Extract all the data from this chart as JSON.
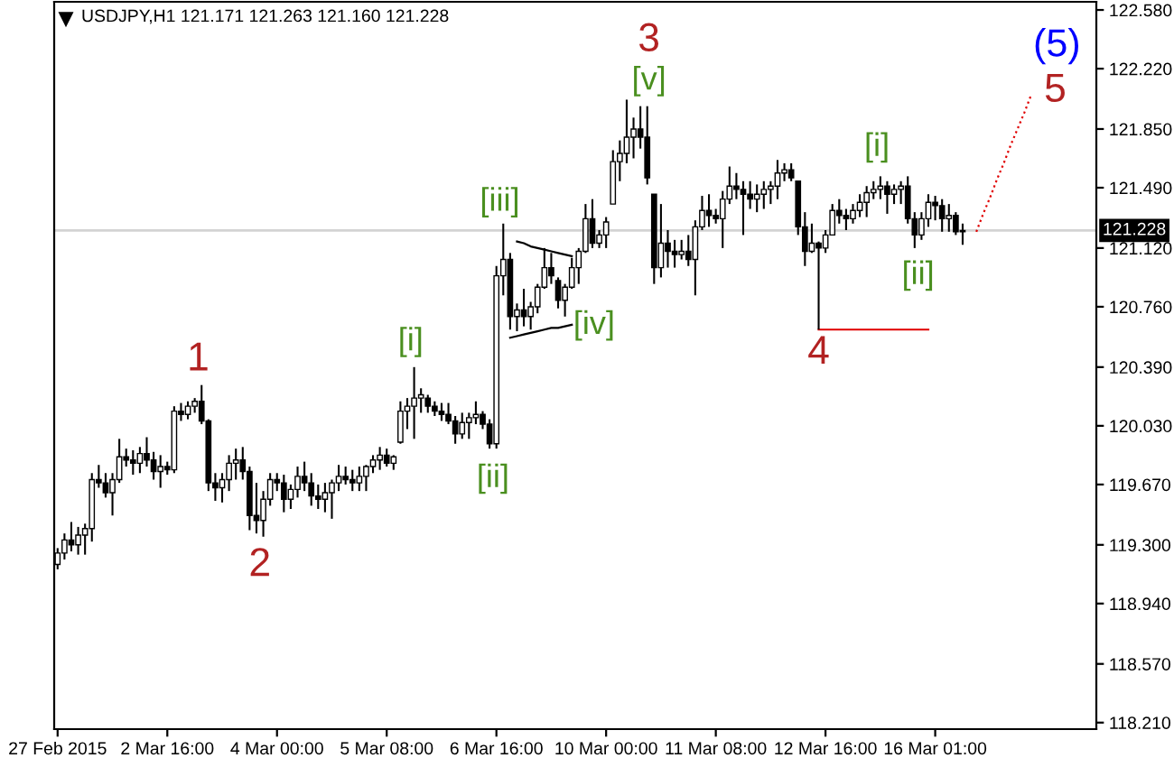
{
  "chart_data": {
    "type": "candlestick",
    "title": "USDJPY,H1 121.171 121.263 121.160 121.228",
    "color": "#000000",
    "categories": [
      "27 Feb 2015",
      null,
      null,
      null,
      null,
      null,
      null,
      null,
      null,
      null,
      null,
      null,
      null,
      null,
      null,
      null,
      "2 Mar 16:00",
      null,
      null,
      null,
      null,
      null,
      null,
      null,
      null,
      null,
      null,
      null,
      null,
      null,
      null,
      null,
      "4 Mar 00:00",
      null,
      null,
      null,
      null,
      null,
      null,
      null,
      null,
      null,
      null,
      null,
      null,
      null,
      null,
      null,
      "5 Mar 08:00",
      null,
      null,
      null,
      null,
      null,
      null,
      null,
      null,
      null,
      null,
      null,
      null,
      null,
      null,
      null,
      "6 Mar 16:00",
      null,
      null,
      null,
      null,
      null,
      null,
      null,
      null,
      null,
      null,
      null,
      null,
      null,
      null,
      null,
      "10 Mar 00:00",
      null,
      null,
      null,
      null,
      null,
      null,
      null,
      null,
      null,
      null,
      null,
      null,
      null,
      null,
      null,
      "11 Mar 08:00",
      null,
      null,
      null,
      null,
      null,
      null,
      null,
      null,
      null,
      null,
      null,
      null,
      null,
      null,
      null,
      "12 Mar 16:00",
      null,
      null,
      null,
      null,
      null,
      null,
      null,
      null,
      null,
      null,
      null,
      null,
      null,
      null,
      null,
      "16 Mar 01:00",
      null,
      null,
      null,
      null,
      null,
      null,
      null,
      null,
      null,
      null,
      null,
      null,
      null,
      null,
      null,
      null,
      null,
      null,
      null,
      null,
      null,
      null,
      null
    ],
    "ohlc": [
      [
        119.18,
        119.28,
        119.15,
        119.25
      ],
      [
        119.25,
        119.37,
        119.21,
        119.33
      ],
      [
        119.33,
        119.44,
        119.26,
        119.3
      ],
      [
        119.3,
        119.41,
        119.24,
        119.36
      ],
      [
        119.36,
        119.43,
        119.24,
        119.4
      ],
      [
        119.4,
        119.74,
        119.32,
        119.7
      ],
      [
        119.7,
        119.79,
        119.65,
        119.68
      ],
      [
        119.68,
        119.74,
        119.59,
        119.62
      ],
      [
        119.62,
        119.74,
        119.48,
        119.7
      ],
      [
        119.7,
        119.95,
        119.68,
        119.84
      ],
      [
        119.84,
        119.89,
        119.78,
        119.82
      ],
      [
        119.82,
        119.88,
        119.73,
        119.8
      ],
      [
        119.8,
        119.9,
        119.74,
        119.86
      ],
      [
        119.86,
        119.96,
        119.78,
        119.82
      ],
      [
        119.82,
        119.87,
        119.7,
        119.75
      ],
      [
        119.75,
        119.85,
        119.65,
        119.78
      ],
      [
        119.78,
        119.81,
        119.73,
        119.76
      ],
      [
        119.76,
        120.15,
        119.74,
        120.12
      ],
      [
        120.12,
        120.17,
        120.06,
        120.1
      ],
      [
        120.1,
        120.18,
        120.07,
        120.15
      ],
      [
        120.15,
        120.2,
        120.11,
        120.18
      ],
      [
        120.18,
        120.28,
        120.04,
        120.06
      ],
      [
        120.06,
        120.07,
        119.63,
        119.68
      ],
      [
        119.68,
        119.74,
        119.57,
        119.65
      ],
      [
        119.65,
        119.74,
        119.56,
        119.7
      ],
      [
        119.7,
        119.85,
        119.63,
        119.8
      ],
      [
        119.8,
        119.89,
        119.7,
        119.82
      ],
      [
        119.82,
        119.9,
        119.7,
        119.75
      ],
      [
        119.75,
        119.78,
        119.39,
        119.48
      ],
      [
        119.48,
        119.68,
        119.37,
        119.45
      ],
      [
        119.45,
        119.63,
        119.35,
        119.58
      ],
      [
        119.58,
        119.74,
        119.54,
        119.7
      ],
      [
        119.7,
        119.74,
        119.63,
        119.68
      ],
      [
        119.68,
        119.73,
        119.5,
        119.58
      ],
      [
        119.58,
        119.67,
        119.52,
        119.64
      ],
      [
        119.64,
        119.78,
        119.59,
        119.72
      ],
      [
        119.72,
        119.81,
        119.63,
        119.68
      ],
      [
        119.68,
        119.74,
        119.54,
        119.6
      ],
      [
        119.6,
        119.67,
        119.52,
        119.58
      ],
      [
        119.58,
        119.68,
        119.5,
        119.62
      ],
      [
        119.62,
        119.7,
        119.46,
        119.68
      ],
      [
        119.68,
        119.79,
        119.63,
        119.72
      ],
      [
        119.72,
        119.78,
        119.67,
        119.7
      ],
      [
        119.7,
        119.76,
        119.63,
        119.68
      ],
      [
        119.68,
        119.78,
        119.63,
        119.72
      ],
      [
        119.72,
        119.79,
        119.63,
        119.78
      ],
      [
        119.78,
        119.85,
        119.74,
        119.82
      ],
      [
        119.82,
        119.9,
        119.76,
        119.85
      ],
      [
        119.85,
        119.89,
        119.78,
        119.8
      ],
      [
        119.8,
        119.85,
        119.76,
        119.84
      ],
      [
        119.93,
        120.18,
        119.92,
        120.12
      ],
      [
        120.12,
        120.2,
        120.01,
        120.15
      ],
      [
        120.15,
        120.39,
        119.95,
        120.2
      ],
      [
        120.2,
        120.26,
        120.11,
        120.22
      ],
      [
        120.2,
        120.22,
        120.11,
        120.15
      ],
      [
        120.15,
        120.18,
        120.09,
        120.12
      ],
      [
        120.12,
        120.17,
        120.06,
        120.1
      ],
      [
        120.1,
        120.17,
        120.04,
        120.06
      ],
      [
        120.06,
        120.09,
        119.92,
        119.98
      ],
      [
        119.98,
        120.11,
        119.95,
        120.05
      ],
      [
        120.05,
        120.11,
        119.95,
        120.08
      ],
      [
        120.08,
        120.18,
        120.04,
        120.1
      ],
      [
        120.1,
        120.12,
        120.01,
        120.04
      ],
      [
        120.04,
        120.07,
        119.89,
        119.92
      ],
      [
        119.92,
        121.01,
        119.89,
        120.95
      ],
      [
        120.95,
        121.27,
        120.83,
        121.05
      ],
      [
        121.05,
        121.09,
        120.62,
        120.7
      ],
      [
        120.7,
        120.78,
        120.61,
        120.74
      ],
      [
        120.74,
        120.87,
        120.64,
        120.7
      ],
      [
        120.7,
        120.79,
        120.62,
        120.76
      ],
      [
        120.76,
        120.9,
        120.72,
        120.88
      ],
      [
        120.88,
        121.12,
        120.87,
        121.0
      ],
      [
        121.0,
        121.09,
        120.9,
        120.95
      ],
      [
        120.92,
        120.94,
        120.75,
        120.8
      ],
      [
        120.8,
        120.9,
        120.7,
        120.88
      ],
      [
        120.88,
        121.06,
        120.87,
        121.0
      ],
      [
        121.0,
        121.12,
        120.9,
        121.1
      ],
      [
        121.1,
        121.39,
        121.09,
        121.3
      ],
      [
        121.3,
        121.42,
        121.12,
        121.15
      ],
      [
        121.15,
        121.23,
        121.12,
        121.2
      ],
      [
        121.2,
        121.31,
        121.12,
        121.28
      ],
      [
        121.39,
        121.72,
        121.39,
        121.65
      ],
      [
        121.65,
        121.78,
        121.53,
        121.7
      ],
      [
        121.7,
        122.03,
        121.64,
        121.8
      ],
      [
        121.8,
        121.92,
        121.67,
        121.85
      ],
      [
        121.85,
        121.99,
        121.73,
        121.8
      ],
      [
        121.8,
        121.99,
        121.51,
        121.55
      ],
      [
        121.45,
        121.45,
        120.9,
        121.0
      ],
      [
        121.0,
        121.39,
        120.94,
        121.15
      ],
      [
        121.15,
        121.23,
        121.0,
        121.1
      ],
      [
        121.1,
        121.17,
        121.0,
        121.08
      ],
      [
        121.08,
        121.17,
        121.05,
        121.1
      ],
      [
        121.1,
        121.2,
        121.01,
        121.05
      ],
      [
        121.05,
        121.29,
        120.83,
        121.25
      ],
      [
        121.25,
        121.44,
        121.23,
        121.35
      ],
      [
        121.35,
        121.45,
        121.25,
        121.32
      ],
      [
        121.32,
        121.36,
        121.27,
        121.3
      ],
      [
        121.3,
        121.47,
        121.12,
        121.42
      ],
      [
        121.42,
        121.62,
        121.39,
        121.5
      ],
      [
        121.5,
        121.58,
        121.42,
        121.48
      ],
      [
        121.48,
        121.53,
        121.2,
        121.45
      ],
      [
        121.45,
        121.53,
        121.36,
        121.42
      ],
      [
        121.42,
        121.51,
        121.34,
        121.45
      ],
      [
        121.45,
        121.53,
        121.36,
        121.48
      ],
      [
        121.48,
        121.53,
        121.39,
        121.5
      ],
      [
        121.5,
        121.66,
        121.42,
        121.58
      ],
      [
        121.58,
        121.64,
        121.53,
        121.6
      ],
      [
        121.6,
        121.64,
        121.53,
        121.55
      ],
      [
        121.53,
        121.53,
        121.2,
        121.25
      ],
      [
        121.25,
        121.34,
        121.01,
        121.1
      ],
      [
        121.1,
        121.27,
        121.09,
        121.15
      ],
      [
        121.15,
        121.16,
        120.62,
        121.12
      ],
      [
        121.12,
        121.23,
        121.09,
        121.2
      ],
      [
        121.2,
        121.39,
        121.2,
        121.35
      ],
      [
        121.35,
        121.42,
        121.27,
        121.32
      ],
      [
        121.32,
        121.36,
        121.23,
        121.3
      ],
      [
        121.3,
        121.39,
        121.27,
        121.35
      ],
      [
        121.35,
        121.45,
        121.31,
        121.4
      ],
      [
        121.4,
        121.5,
        121.31,
        121.46
      ],
      [
        121.46,
        121.53,
        121.42,
        121.48
      ],
      [
        121.48,
        121.56,
        121.42,
        121.5
      ],
      [
        121.5,
        121.53,
        121.33,
        121.45
      ],
      [
        121.45,
        121.51,
        121.39,
        121.48
      ],
      [
        121.48,
        121.53,
        121.39,
        121.5
      ],
      [
        121.5,
        121.56,
        121.27,
        121.3
      ],
      [
        121.3,
        121.34,
        121.12,
        121.2
      ],
      [
        121.2,
        121.34,
        121.17,
        121.3
      ],
      [
        121.3,
        121.45,
        121.25,
        121.4
      ],
      [
        121.4,
        121.44,
        121.29,
        121.38
      ],
      [
        121.38,
        121.42,
        121.22,
        121.3
      ],
      [
        121.3,
        121.39,
        121.22,
        121.32
      ],
      [
        121.32,
        121.34,
        121.2,
        121.22
      ],
      [
        121.22,
        121.27,
        121.14,
        121.228
      ],
      null,
      null,
      null,
      null,
      null,
      null,
      null,
      null,
      null,
      null,
      null,
      null,
      null,
      null,
      null,
      null,
      null,
      null,
      null
    ],
    "series": [
      {
        "type": "line",
        "color": "#000000",
        "values": [
          null,
          null,
          null,
          null,
          null,
          null,
          null,
          null,
          null,
          null,
          null,
          null,
          null,
          null,
          null,
          null,
          null,
          null,
          null,
          null,
          null,
          null,
          null,
          null,
          null,
          null,
          null,
          null,
          null,
          null,
          null,
          null,
          null,
          null,
          null,
          null,
          null,
          null,
          null,
          null,
          null,
          null,
          null,
          null,
          null,
          null,
          null,
          null,
          null,
          null,
          null,
          null,
          null,
          null,
          null,
          null,
          null,
          null,
          null,
          null,
          null,
          null,
          null,
          null,
          null,
          null,
          null,
          121.16,
          121.15,
          121.13,
          121.12,
          121.11,
          121.1,
          121.09,
          121.08,
          121.07,
          null,
          null,
          null,
          null,
          null,
          null,
          null,
          null,
          null,
          null,
          null,
          null,
          null,
          null,
          null,
          null,
          null,
          null,
          null,
          null,
          null,
          null,
          null,
          null,
          null,
          null,
          null,
          null,
          null,
          null,
          null,
          null,
          null,
          null,
          null,
          null,
          null,
          null,
          null,
          null,
          null,
          null,
          null,
          null,
          null,
          null,
          null,
          null,
          null,
          null,
          null,
          null,
          null,
          null,
          null,
          null,
          null,
          null,
          null,
          null,
          null,
          null,
          null,
          null,
          null,
          null,
          null,
          null,
          null,
          null,
          null,
          null,
          null,
          null,
          null,
          null
        ]
      },
      {
        "type": "line",
        "color": "#000000",
        "values": [
          null,
          null,
          null,
          null,
          null,
          null,
          null,
          null,
          null,
          null,
          null,
          null,
          null,
          null,
          null,
          null,
          null,
          null,
          null,
          null,
          null,
          null,
          null,
          null,
          null,
          null,
          null,
          null,
          null,
          null,
          null,
          null,
          null,
          null,
          null,
          null,
          null,
          null,
          null,
          null,
          null,
          null,
          null,
          null,
          null,
          null,
          null,
          null,
          null,
          null,
          null,
          null,
          null,
          null,
          null,
          null,
          null,
          null,
          null,
          null,
          null,
          null,
          null,
          null,
          null,
          null,
          120.57,
          120.58,
          120.59,
          120.6,
          120.61,
          120.62,
          120.63,
          120.63,
          120.64,
          120.65,
          null,
          null,
          null,
          null,
          null,
          null,
          null,
          null,
          null,
          null,
          null,
          null,
          null,
          null,
          null,
          null,
          null,
          null,
          null,
          null,
          null,
          null,
          null,
          null,
          null,
          null,
          null,
          null,
          null,
          null,
          null,
          null,
          null,
          null,
          null,
          null,
          null,
          null,
          null,
          null,
          null,
          null,
          null,
          null,
          null,
          null,
          null,
          null,
          null,
          null,
          null,
          null,
          null,
          null,
          null,
          null,
          null,
          null,
          null,
          null,
          null,
          null,
          null,
          null,
          null,
          null,
          null,
          null,
          null,
          null,
          null,
          null,
          null,
          null,
          null,
          null
        ]
      },
      {
        "type": "line",
        "color": "#e00000",
        "values": [
          null,
          null,
          null,
          null,
          null,
          null,
          null,
          null,
          null,
          null,
          null,
          null,
          null,
          null,
          null,
          null,
          null,
          null,
          null,
          null,
          null,
          null,
          null,
          null,
          null,
          null,
          null,
          null,
          null,
          null,
          null,
          null,
          null,
          null,
          null,
          null,
          null,
          null,
          null,
          null,
          null,
          null,
          null,
          null,
          null,
          null,
          null,
          null,
          null,
          null,
          null,
          null,
          null,
          null,
          null,
          null,
          null,
          null,
          null,
          null,
          null,
          null,
          null,
          null,
          null,
          null,
          null,
          null,
          null,
          null,
          null,
          null,
          null,
          null,
          null,
          null,
          null,
          null,
          null,
          null,
          null,
          null,
          null,
          null,
          null,
          null,
          null,
          null,
          null,
          null,
          null,
          null,
          null,
          null,
          null,
          null,
          null,
          null,
          null,
          null,
          null,
          null,
          null,
          null,
          null,
          null,
          null,
          null,
          null,
          null,
          null,
          120.62,
          120.62,
          120.62,
          120.62,
          120.62,
          120.62,
          120.62,
          120.62,
          120.62,
          120.62,
          120.62,
          120.62,
          120.62,
          120.62,
          120.62,
          120.62,
          120.62,
          null,
          null,
          null,
          null,
          null,
          null,
          null,
          null,
          null,
          null,
          null,
          null,
          null,
          null,
          null,
          null,
          null,
          null,
          null,
          null,
          null,
          null,
          null,
          null
        ]
      },
      {
        "type": "line",
        "color": "#e00000",
        "line_style": "dotted",
        "values": [
          null,
          null,
          null,
          null,
          null,
          null,
          null,
          null,
          null,
          null,
          null,
          null,
          null,
          null,
          null,
          null,
          null,
          null,
          null,
          null,
          null,
          null,
          null,
          null,
          null,
          null,
          null,
          null,
          null,
          null,
          null,
          null,
          null,
          null,
          null,
          null,
          null,
          null,
          null,
          null,
          null,
          null,
          null,
          null,
          null,
          null,
          null,
          null,
          null,
          null,
          null,
          null,
          null,
          null,
          null,
          null,
          null,
          null,
          null,
          null,
          null,
          null,
          null,
          null,
          null,
          null,
          null,
          null,
          null,
          null,
          null,
          null,
          null,
          null,
          null,
          null,
          null,
          null,
          null,
          null,
          null,
          null,
          null,
          null,
          null,
          null,
          null,
          null,
          null,
          null,
          null,
          null,
          null,
          null,
          null,
          null,
          null,
          null,
          null,
          null,
          null,
          null,
          null,
          null,
          null,
          null,
          null,
          null,
          null,
          null,
          null,
          null,
          null,
          null,
          null,
          null,
          null,
          null,
          null,
          null,
          null,
          null,
          null,
          null,
          null,
          null,
          null,
          null,
          null,
          null,
          null,
          null,
          null,
          null,
          121.22,
          121.33,
          121.43,
          121.54,
          121.64,
          121.75,
          121.85,
          121.95,
          122.06,
          null,
          null,
          null,
          null,
          null,
          null,
          null,
          null,
          null
        ]
      }
    ],
    "ylim": [
      118.17,
      122.63
    ],
    "yticks": [
      {
        "value": 122.58,
        "label": "122.580"
      },
      {
        "value": 122.22,
        "label": "122.220"
      },
      {
        "value": 121.85,
        "label": "121.850"
      },
      {
        "value": 121.49,
        "label": "121.490"
      },
      {
        "value": 121.12,
        "label": "121.120"
      },
      {
        "value": 120.76,
        "label": "120.760"
      },
      {
        "value": 120.39,
        "label": "120.390"
      },
      {
        "value": 120.03,
        "label": "120.030"
      },
      {
        "value": 119.67,
        "label": "119.670"
      },
      {
        "value": 119.3,
        "label": "119.300"
      },
      {
        "value": 118.94,
        "label": "118.940"
      },
      {
        "value": 118.57,
        "label": "118.570"
      },
      {
        "value": 118.21,
        "label": "118.210"
      }
    ],
    "ref_lines": [
      {
        "axis": "y",
        "value": 121.228,
        "label": "121.228",
        "color": "#d3d3d3"
      }
    ],
    "annotations": [
      {
        "text": "1",
        "y": 120.28
      },
      {
        "text": "2",
        "y": 119.35
      },
      {
        "text": "3",
        "y": 122.03
      },
      {
        "text": "4",
        "y": 120.62
      },
      "5",
      "(5)",
      {
        "text": "[i]",
        "y": 120.39
      },
      {
        "text": "[ii]",
        "y": 119.89
      },
      {
        "text": "[iii]",
        "y": 121.27
      },
      "[iv]",
      {
        "text": "[v]",
        "y": 121.99
      },
      {
        "text": "[i]",
        "y": 121.56
      },
      {
        "text": "[ii]",
        "y": 121.12
      }
    ]
  }
}
